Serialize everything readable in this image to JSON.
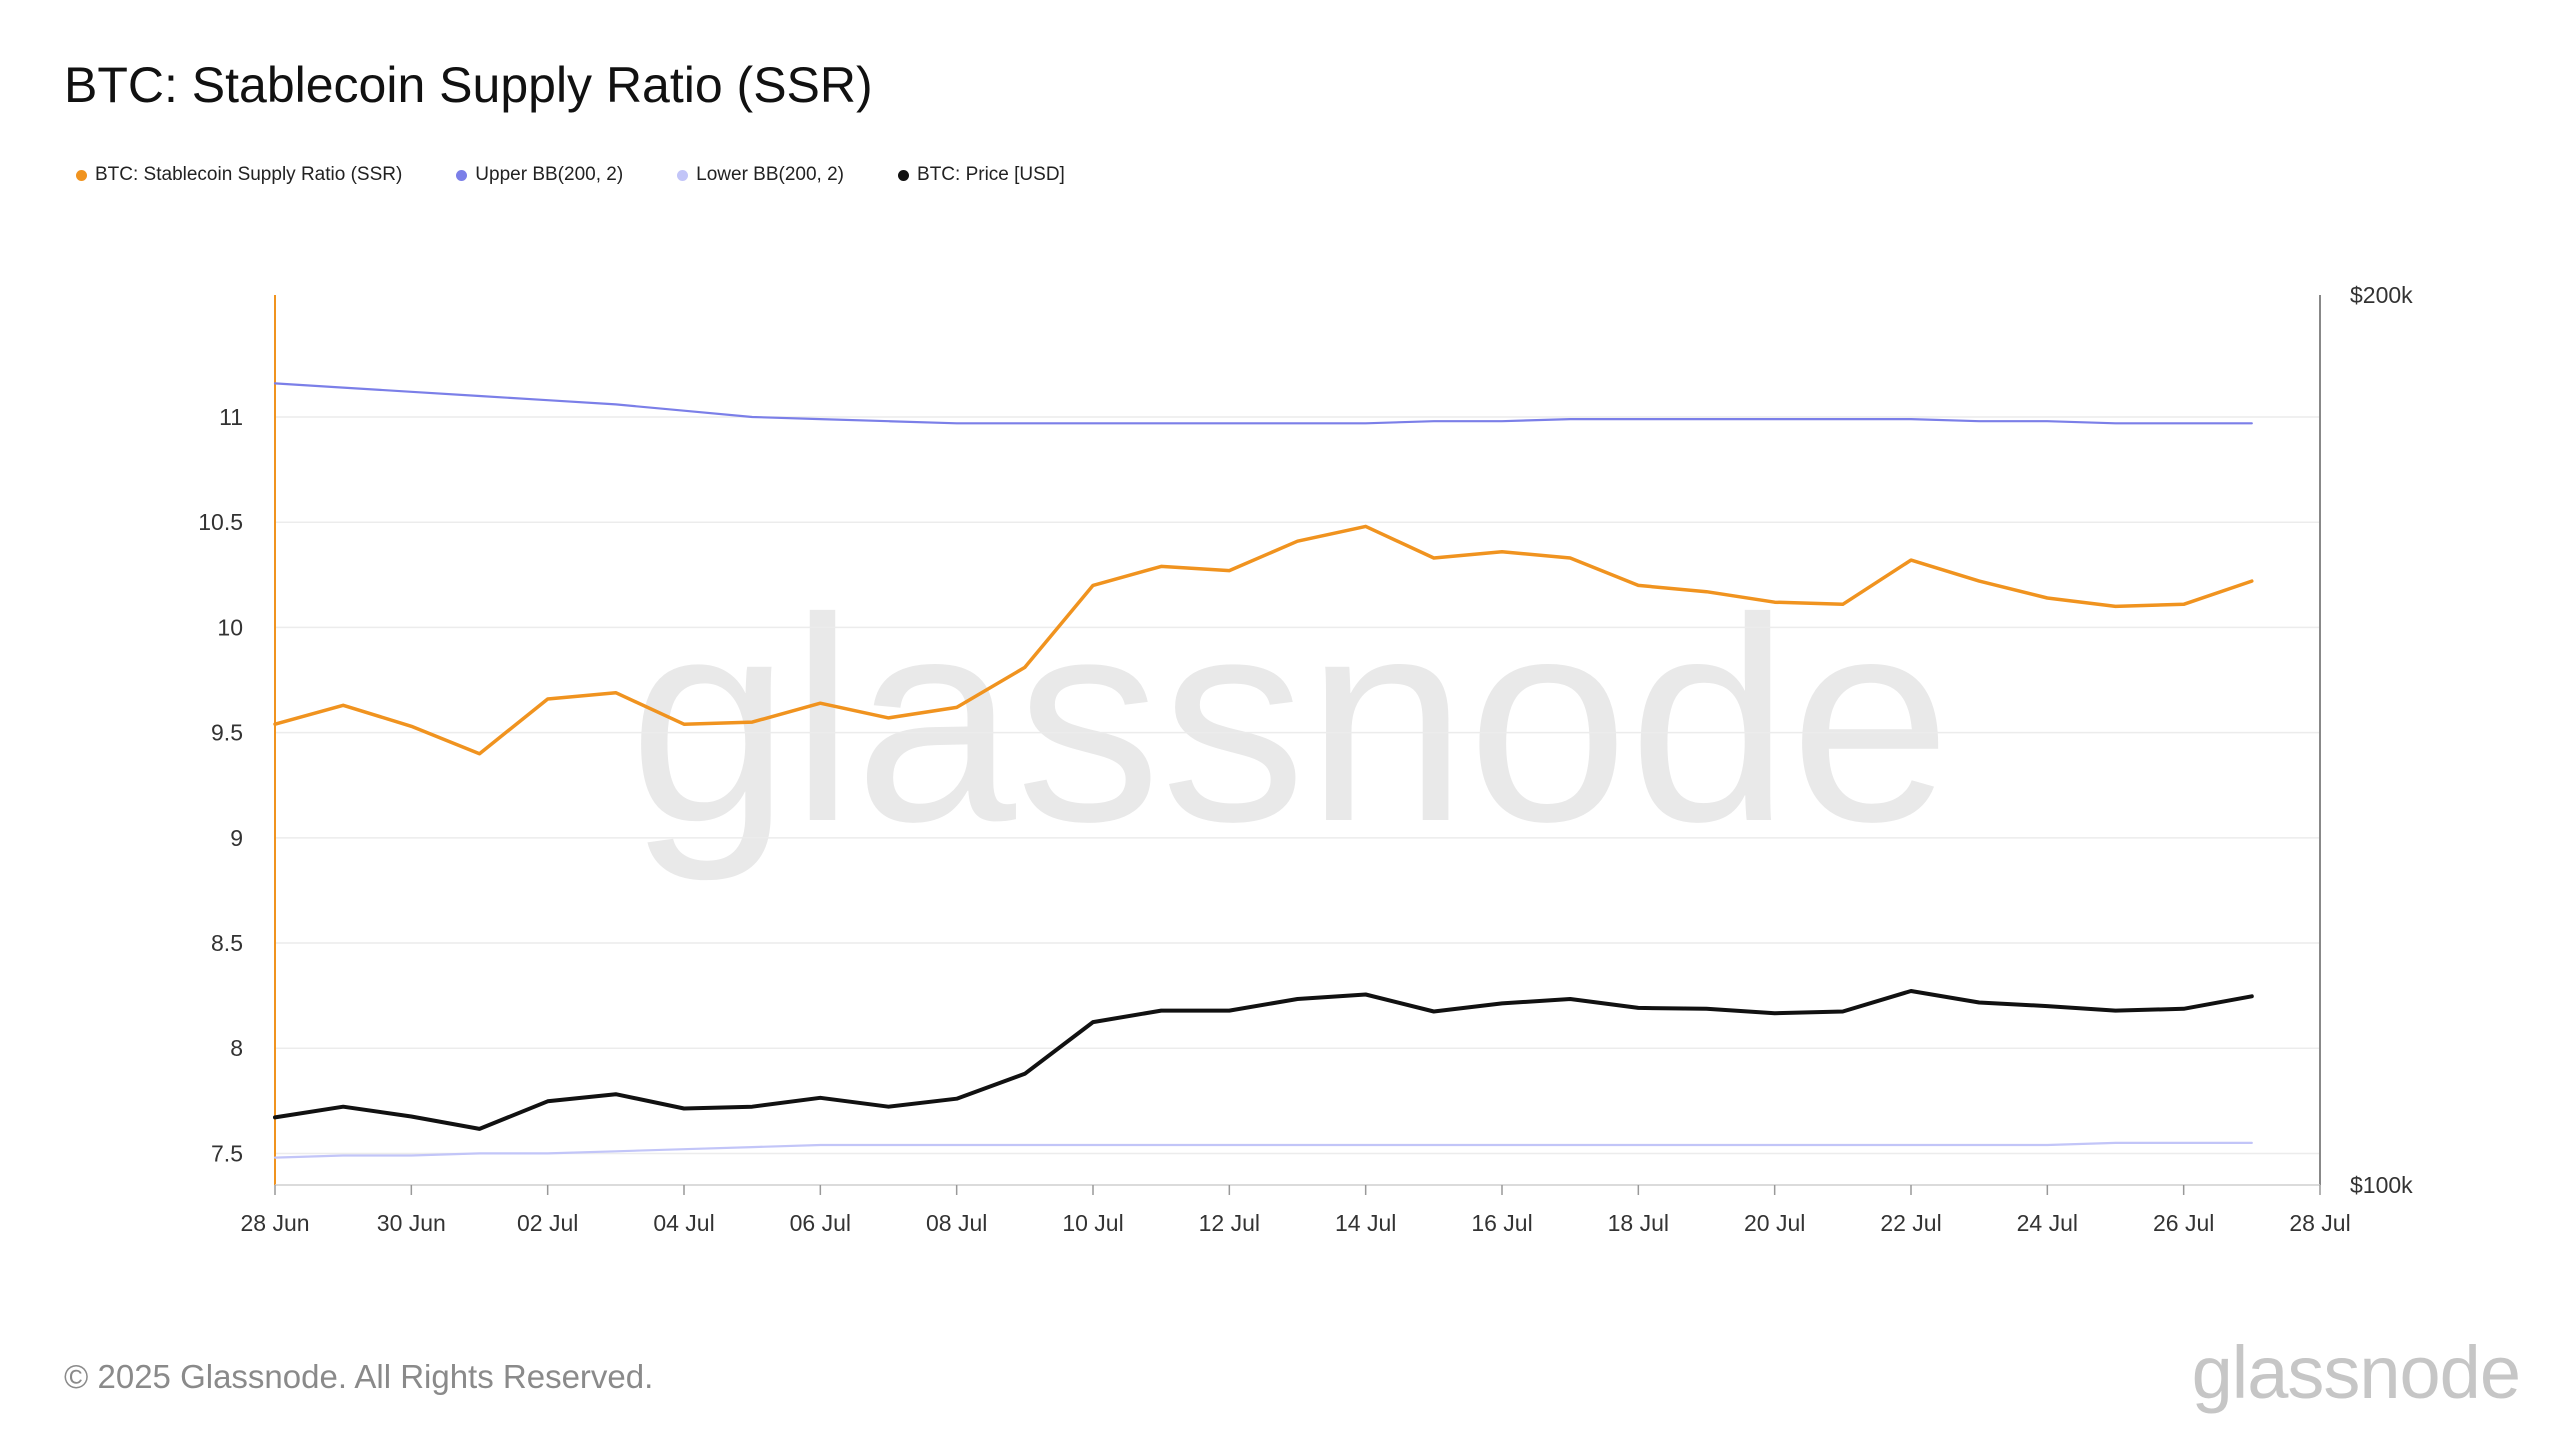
{
  "chart_data": {
    "type": "line",
    "title": "BTC: Stablecoin Supply Ratio (SSR)",
    "x": [
      "28 Jun",
      "29 Jun",
      "30 Jun",
      "01 Jul",
      "02 Jul",
      "03 Jul",
      "04 Jul",
      "05 Jul",
      "06 Jul",
      "07 Jul",
      "08 Jul",
      "09 Jul",
      "10 Jul",
      "11 Jul",
      "12 Jul",
      "13 Jul",
      "14 Jul",
      "15 Jul",
      "16 Jul",
      "17 Jul",
      "18 Jul",
      "19 Jul",
      "20 Jul",
      "21 Jul",
      "22 Jul",
      "23 Jul",
      "24 Jul",
      "25 Jul",
      "26 Jul",
      "27 Jul"
    ],
    "x_ticks": [
      "28 Jun",
      "30 Jun",
      "02 Jul",
      "04 Jul",
      "06 Jul",
      "08 Jul",
      "10 Jul",
      "12 Jul",
      "14 Jul",
      "16 Jul",
      "18 Jul",
      "20 Jul",
      "22 Jul",
      "24 Jul",
      "26 Jul",
      "28 Jul"
    ],
    "y_left": {
      "ticks": [
        "7.5",
        "8",
        "8.5",
        "9",
        "9.5",
        "10",
        "10.5",
        "11"
      ],
      "ylim": [
        7.35,
        11.58
      ]
    },
    "y_right": {
      "ticks": [
        "$100k",
        "$200k"
      ],
      "ylim": [
        100000,
        200000
      ]
    },
    "series": [
      {
        "name": "BTC: Stablecoin Supply Ratio (SSR)",
        "axis": "left",
        "color": "#f0931f",
        "values": [
          9.54,
          9.63,
          9.53,
          9.4,
          9.66,
          9.69,
          9.54,
          9.55,
          9.64,
          9.57,
          9.62,
          9.81,
          10.2,
          10.29,
          10.27,
          10.41,
          10.48,
          10.33,
          10.36,
          10.33,
          10.2,
          10.17,
          10.12,
          10.11,
          10.32,
          10.22,
          10.14,
          10.1,
          10.11,
          10.22
        ]
      },
      {
        "name": "Upper BB(200, 2)",
        "axis": "left",
        "color": "#7b7fe8",
        "values": [
          11.16,
          11.14,
          11.12,
          11.1,
          11.08,
          11.06,
          11.03,
          11.0,
          10.99,
          10.98,
          10.97,
          10.97,
          10.97,
          10.97,
          10.97,
          10.97,
          10.97,
          10.98,
          10.98,
          10.99,
          10.99,
          10.99,
          10.99,
          10.99,
          10.99,
          10.98,
          10.98,
          10.97,
          10.97,
          10.97
        ]
      },
      {
        "name": "Lower BB(200, 2)",
        "axis": "left",
        "color": "#c2c5f8",
        "values": [
          7.48,
          7.49,
          7.49,
          7.5,
          7.5,
          7.51,
          7.52,
          7.53,
          7.54,
          7.54,
          7.54,
          7.54,
          7.54,
          7.54,
          7.54,
          7.54,
          7.54,
          7.54,
          7.54,
          7.54,
          7.54,
          7.54,
          7.54,
          7.54,
          7.54,
          7.54,
          7.54,
          7.55,
          7.55,
          7.55
        ]
      },
      {
        "name": "BTC: Price [USD]",
        "axis": "right",
        "color": "#111111",
        "values": [
          107600,
          108800,
          107700,
          106300,
          109400,
          110200,
          108600,
          108800,
          109800,
          108800,
          109700,
          112500,
          118300,
          119600,
          119600,
          120900,
          121400,
          119500,
          120400,
          120900,
          119900,
          119800,
          119300,
          119500,
          121800,
          120500,
          120100,
          119600,
          119800,
          121200
        ]
      }
    ],
    "legend": [
      "BTC: Stablecoin Supply Ratio (SSR)",
      "Upper BB(200, 2)",
      "Lower BB(200, 2)",
      "BTC: Price [USD]"
    ],
    "watermark": "glassnode",
    "grid": true
  },
  "footer": {
    "copyright": "© 2025 Glassnode. All Rights Reserved.",
    "logo": "glassnode"
  }
}
